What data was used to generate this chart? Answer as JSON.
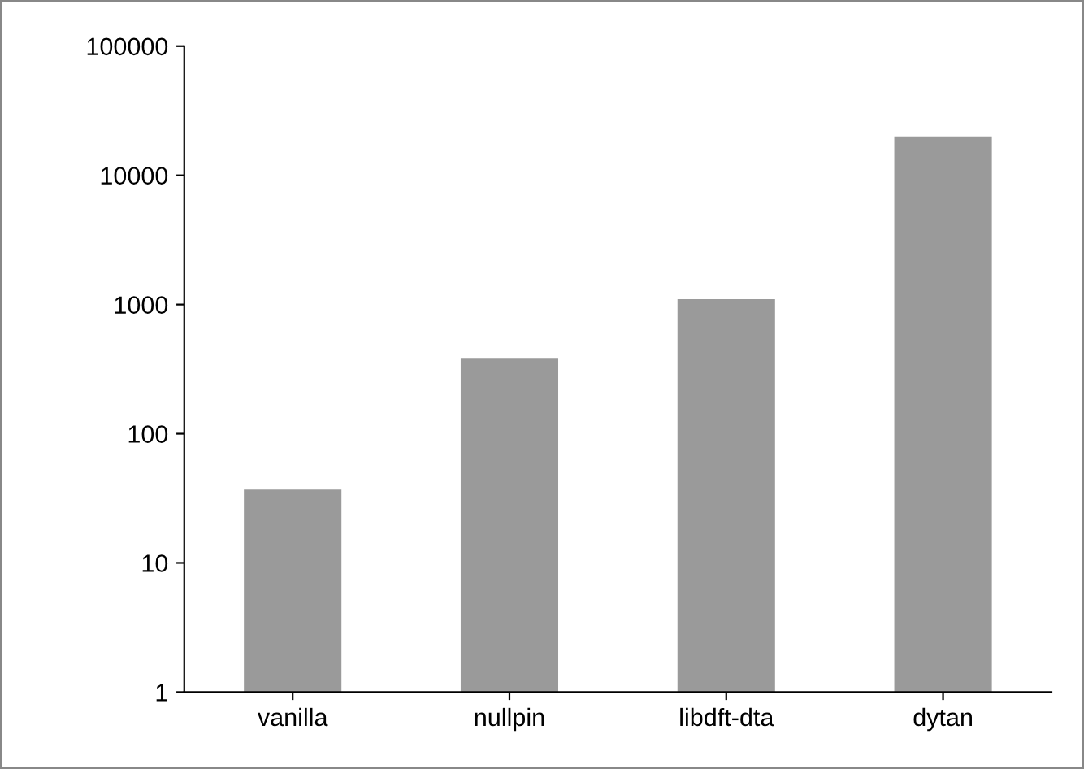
{
  "chart_data": {
    "type": "bar",
    "categories": [
      "vanilla",
      "nullpin",
      "libdft-dta",
      "dytan"
    ],
    "values": [
      36,
      380,
      1100,
      20000
    ],
    "color": "#9a9a9a",
    "log": "y",
    "ylim": [
      1,
      100000
    ],
    "yticks": [
      1,
      10,
      100,
      1000,
      10000,
      100000
    ],
    "grid": false
  }
}
